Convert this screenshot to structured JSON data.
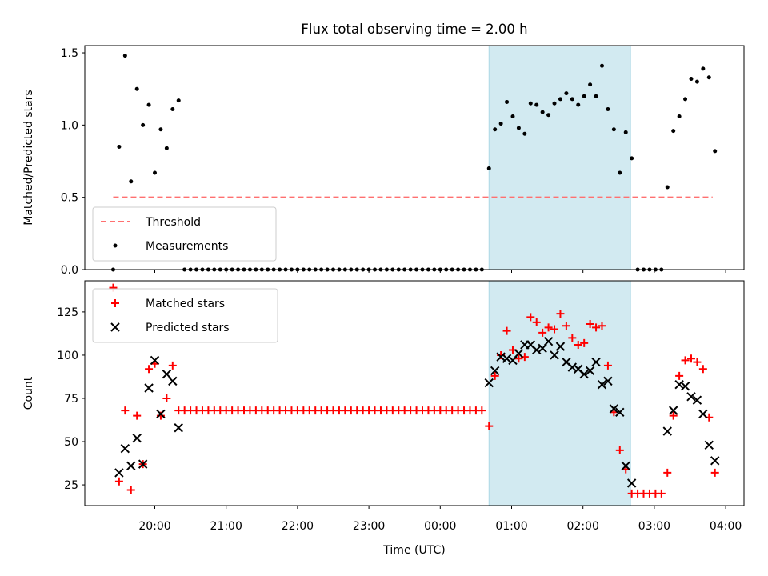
{
  "figure": {
    "title": "Flux total observing time = 2.00 h",
    "xlabel": "Time (UTC)"
  },
  "chart_data": [
    {
      "type": "scatter",
      "title": "Flux total observing time = 2.00 h",
      "ylabel": "Matched/Predicted stars",
      "ylim": [
        0,
        1.55
      ],
      "yticks": [
        0.0,
        0.5,
        1.0,
        1.5
      ],
      "ytick_labels": [
        "0.0",
        "0.5",
        "1.0",
        "1.5"
      ],
      "shaded_region": {
        "x": [
          "00:41",
          "02:40"
        ],
        "color": "#add8e6"
      },
      "legend": {
        "placement": "lower-left",
        "entries": [
          "Threshold",
          "Measurements"
        ]
      },
      "series": [
        {
          "name": "Threshold",
          "style": "dashed-line",
          "color": "#ff7070",
          "x": [
            "19:25",
            "03:49"
          ],
          "y": [
            0.5,
            0.5
          ]
        },
        {
          "name": "Measurements",
          "style": "dot",
          "color": "#000000",
          "points": [
            [
              "19:25",
              0.0
            ],
            [
              "19:30",
              0.85
            ],
            [
              "19:35",
              1.48
            ],
            [
              "19:40",
              0.61
            ],
            [
              "19:45",
              1.25
            ],
            [
              "19:50",
              1.0
            ],
            [
              "19:55",
              1.14
            ],
            [
              "20:00",
              0.67
            ],
            [
              "20:05",
              0.97
            ],
            [
              "20:10",
              0.84
            ],
            [
              "20:15",
              1.11
            ],
            [
              "20:20",
              1.17
            ],
            [
              "20:25",
              0.0
            ],
            [
              "20:30",
              0.0
            ],
            [
              "20:35",
              0.0
            ],
            [
              "20:40",
              0.0
            ],
            [
              "20:45",
              0.0
            ],
            [
              "20:50",
              0.0
            ],
            [
              "20:55",
              0.0
            ],
            [
              "21:00",
              0.0
            ],
            [
              "21:05",
              0.0
            ],
            [
              "21:10",
              0.0
            ],
            [
              "21:15",
              0.0
            ],
            [
              "21:20",
              0.0
            ],
            [
              "21:25",
              0.0
            ],
            [
              "21:30",
              0.0
            ],
            [
              "21:35",
              0.0
            ],
            [
              "21:40",
              0.0
            ],
            [
              "21:45",
              0.0
            ],
            [
              "21:50",
              0.0
            ],
            [
              "21:55",
              0.0
            ],
            [
              "22:00",
              0.0
            ],
            [
              "22:05",
              0.0
            ],
            [
              "22:10",
              0.0
            ],
            [
              "22:15",
              0.0
            ],
            [
              "22:20",
              0.0
            ],
            [
              "22:25",
              0.0
            ],
            [
              "22:30",
              0.0
            ],
            [
              "22:35",
              0.0
            ],
            [
              "22:40",
              0.0
            ],
            [
              "22:45",
              0.0
            ],
            [
              "22:50",
              0.0
            ],
            [
              "22:55",
              0.0
            ],
            [
              "23:00",
              0.0
            ],
            [
              "23:05",
              0.0
            ],
            [
              "23:10",
              0.0
            ],
            [
              "23:15",
              0.0
            ],
            [
              "23:20",
              0.0
            ],
            [
              "23:25",
              0.0
            ],
            [
              "23:30",
              0.0
            ],
            [
              "23:35",
              0.0
            ],
            [
              "23:40",
              0.0
            ],
            [
              "23:45",
              0.0
            ],
            [
              "23:50",
              0.0
            ],
            [
              "23:55",
              0.0
            ],
            [
              "00:00",
              0.0
            ],
            [
              "00:05",
              0.0
            ],
            [
              "00:10",
              0.0
            ],
            [
              "00:15",
              0.0
            ],
            [
              "00:20",
              0.0
            ],
            [
              "00:25",
              0.0
            ],
            [
              "00:30",
              0.0
            ],
            [
              "00:35",
              0.0
            ],
            [
              "00:41",
              0.7
            ],
            [
              "00:46",
              0.97
            ],
            [
              "00:51",
              1.01
            ],
            [
              "00:56",
              1.16
            ],
            [
              "01:01",
              1.06
            ],
            [
              "01:06",
              0.98
            ],
            [
              "01:11",
              0.94
            ],
            [
              "01:16",
              1.15
            ],
            [
              "01:21",
              1.14
            ],
            [
              "01:26",
              1.09
            ],
            [
              "01:31",
              1.07
            ],
            [
              "01:36",
              1.15
            ],
            [
              "01:41",
              1.18
            ],
            [
              "01:46",
              1.22
            ],
            [
              "01:51",
              1.18
            ],
            [
              "01:56",
              1.14
            ],
            [
              "02:01",
              1.2
            ],
            [
              "02:06",
              1.28
            ],
            [
              "02:11",
              1.2
            ],
            [
              "02:16",
              1.41
            ],
            [
              "02:21",
              1.11
            ],
            [
              "02:26",
              0.97
            ],
            [
              "02:31",
              0.67
            ],
            [
              "02:36",
              0.95
            ],
            [
              "02:41",
              0.77
            ],
            [
              "02:46",
              0.0
            ],
            [
              "02:51",
              0.0
            ],
            [
              "02:56",
              0.0
            ],
            [
              "03:01",
              0.0
            ],
            [
              "03:06",
              0.0
            ],
            [
              "03:11",
              0.57
            ],
            [
              "03:16",
              0.96
            ],
            [
              "03:21",
              1.06
            ],
            [
              "03:26",
              1.18
            ],
            [
              "03:31",
              1.32
            ],
            [
              "03:36",
              1.3
            ],
            [
              "03:41",
              1.39
            ],
            [
              "03:46",
              1.33
            ],
            [
              "03:51",
              0.82
            ]
          ]
        }
      ]
    },
    {
      "type": "scatter",
      "ylabel": "Count",
      "xlabel": "Time (UTC)",
      "ylim": [
        13,
        143
      ],
      "yticks": [
        25,
        50,
        75,
        100,
        125
      ],
      "ytick_labels": [
        "25",
        "50",
        "75",
        "100",
        "125"
      ],
      "xticks": [
        "20:00",
        "21:00",
        "22:00",
        "23:00",
        "00:00",
        "01:00",
        "02:00",
        "03:00",
        "04:00"
      ],
      "shaded_region": {
        "x": [
          "00:41",
          "02:40"
        ],
        "color": "#add8e6"
      },
      "legend": {
        "placement": "upper-left",
        "entries": [
          "Matched stars",
          "Predicted stars"
        ]
      },
      "series": [
        {
          "name": "Matched stars",
          "marker": "plus",
          "color": "#ff0000",
          "points": [
            [
              "19:25",
              139
            ],
            [
              "19:30",
              27
            ],
            [
              "19:35",
              68
            ],
            [
              "19:40",
              22
            ],
            [
              "19:45",
              65
            ],
            [
              "19:50",
              37
            ],
            [
              "19:55",
              92
            ],
            [
              "20:00",
              95
            ],
            [
              "20:05",
              65
            ],
            [
              "20:10",
              75
            ],
            [
              "20:15",
              94
            ],
            [
              "20:20",
              68
            ],
            [
              "20:25",
              68
            ],
            [
              "20:30",
              68
            ],
            [
              "20:35",
              68
            ],
            [
              "20:40",
              68
            ],
            [
              "20:45",
              68
            ],
            [
              "20:50",
              68
            ],
            [
              "20:55",
              68
            ],
            [
              "21:00",
              68
            ],
            [
              "21:05",
              68
            ],
            [
              "21:10",
              68
            ],
            [
              "21:15",
              68
            ],
            [
              "21:20",
              68
            ],
            [
              "21:25",
              68
            ],
            [
              "21:30",
              68
            ],
            [
              "21:35",
              68
            ],
            [
              "21:40",
              68
            ],
            [
              "21:45",
              68
            ],
            [
              "21:50",
              68
            ],
            [
              "21:55",
              68
            ],
            [
              "22:00",
              68
            ],
            [
              "22:05",
              68
            ],
            [
              "22:10",
              68
            ],
            [
              "22:15",
              68
            ],
            [
              "22:20",
              68
            ],
            [
              "22:25",
              68
            ],
            [
              "22:30",
              68
            ],
            [
              "22:35",
              68
            ],
            [
              "22:40",
              68
            ],
            [
              "22:45",
              68
            ],
            [
              "22:50",
              68
            ],
            [
              "22:55",
              68
            ],
            [
              "23:00",
              68
            ],
            [
              "23:05",
              68
            ],
            [
              "23:10",
              68
            ],
            [
              "23:15",
              68
            ],
            [
              "23:20",
              68
            ],
            [
              "23:25",
              68
            ],
            [
              "23:30",
              68
            ],
            [
              "23:35",
              68
            ],
            [
              "23:40",
              68
            ],
            [
              "23:45",
              68
            ],
            [
              "23:50",
              68
            ],
            [
              "23:55",
              68
            ],
            [
              "00:00",
              68
            ],
            [
              "00:05",
              68
            ],
            [
              "00:10",
              68
            ],
            [
              "00:15",
              68
            ],
            [
              "00:20",
              68
            ],
            [
              "00:25",
              68
            ],
            [
              "00:30",
              68
            ],
            [
              "00:35",
              68
            ],
            [
              "00:41",
              59
            ],
            [
              "00:46",
              88
            ],
            [
              "00:51",
              100
            ],
            [
              "00:56",
              114
            ],
            [
              "01:01",
              103
            ],
            [
              "01:06",
              98
            ],
            [
              "01:11",
              99
            ],
            [
              "01:16",
              122
            ],
            [
              "01:21",
              119
            ],
            [
              "01:26",
              113
            ],
            [
              "01:31",
              116
            ],
            [
              "01:36",
              115
            ],
            [
              "01:41",
              124
            ],
            [
              "01:46",
              117
            ],
            [
              "01:51",
              110
            ],
            [
              "01:56",
              106
            ],
            [
              "02:01",
              107
            ],
            [
              "02:06",
              118
            ],
            [
              "02:11",
              116
            ],
            [
              "02:16",
              117
            ],
            [
              "02:21",
              94
            ],
            [
              "02:26",
              67
            ],
            [
              "02:31",
              45
            ],
            [
              "02:36",
              34
            ],
            [
              "02:41",
              20
            ],
            [
              "02:46",
              20
            ],
            [
              "02:51",
              20
            ],
            [
              "02:56",
              20
            ],
            [
              "03:01",
              20
            ],
            [
              "03:06",
              20
            ],
            [
              "03:11",
              32
            ],
            [
              "03:16",
              65
            ],
            [
              "03:21",
              88
            ],
            [
              "03:26",
              97
            ],
            [
              "03:31",
              98
            ],
            [
              "03:36",
              96
            ],
            [
              "03:41",
              92
            ],
            [
              "03:46",
              64
            ],
            [
              "03:51",
              32
            ]
          ]
        },
        {
          "name": "Predicted stars",
          "marker": "x",
          "color": "#000000",
          "points": [
            [
              "19:30",
              32
            ],
            [
              "19:35",
              46
            ],
            [
              "19:40",
              36
            ],
            [
              "19:45",
              52
            ],
            [
              "19:50",
              37
            ],
            [
              "19:55",
              81
            ],
            [
              "20:00",
              97
            ],
            [
              "20:05",
              66
            ],
            [
              "20:10",
              89
            ],
            [
              "20:15",
              85
            ],
            [
              "20:20",
              58
            ],
            [
              "00:41",
              84
            ],
            [
              "00:46",
              91
            ],
            [
              "00:51",
              99
            ],
            [
              "00:56",
              98
            ],
            [
              "01:01",
              97
            ],
            [
              "01:06",
              101
            ],
            [
              "01:11",
              106
            ],
            [
              "01:16",
              106
            ],
            [
              "01:21",
              103
            ],
            [
              "01:26",
              104
            ],
            [
              "01:31",
              108
            ],
            [
              "01:36",
              100
            ],
            [
              "01:41",
              105
            ],
            [
              "01:46",
              96
            ],
            [
              "01:51",
              93
            ],
            [
              "01:56",
              92
            ],
            [
              "02:01",
              89
            ],
            [
              "02:06",
              91
            ],
            [
              "02:11",
              96
            ],
            [
              "02:16",
              83
            ],
            [
              "02:21",
              85
            ],
            [
              "02:26",
              69
            ],
            [
              "02:31",
              67
            ],
            [
              "02:36",
              36
            ],
            [
              "02:41",
              26
            ],
            [
              "03:11",
              56
            ],
            [
              "03:16",
              68
            ],
            [
              "03:21",
              83
            ],
            [
              "03:26",
              82
            ],
            [
              "03:31",
              76
            ],
            [
              "03:36",
              74
            ],
            [
              "03:41",
              66
            ],
            [
              "03:46",
              48
            ],
            [
              "03:51",
              39
            ]
          ]
        }
      ]
    }
  ]
}
